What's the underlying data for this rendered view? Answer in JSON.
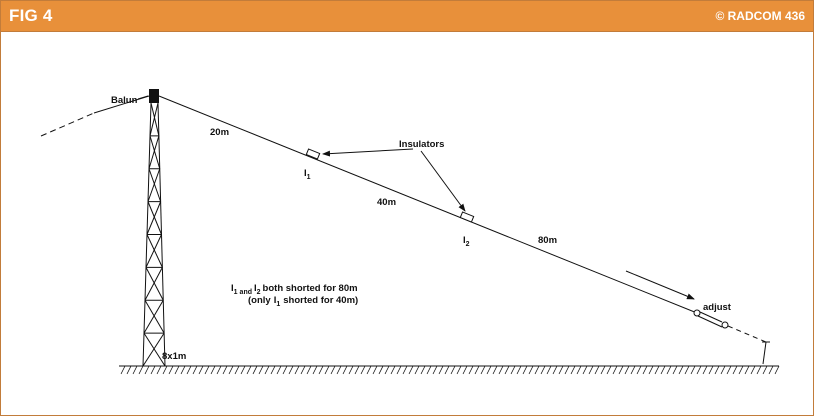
{
  "header": {
    "title": "FIG 4",
    "credit": "© RADCOM 436"
  },
  "labels": {
    "balun": "Balun",
    "seg_20m": "20m",
    "seg_40m": "40m",
    "seg_80m": "80m",
    "insulators": "Insulators",
    "i_letter": "I",
    "sub_1": "1",
    "sub_2": "2",
    "and": "and",
    "note_line1_rest": "both shorted for 80m",
    "note_line2_pre": "(only",
    "note_line2_post": "shorted for 40m)",
    "adjust": "adjust",
    "mast": "8x1m"
  },
  "colors": {
    "header_bg": "#e8903a",
    "header_text": "#ffffff",
    "frame_border": "#c27c3a",
    "ink": "#111111"
  }
}
